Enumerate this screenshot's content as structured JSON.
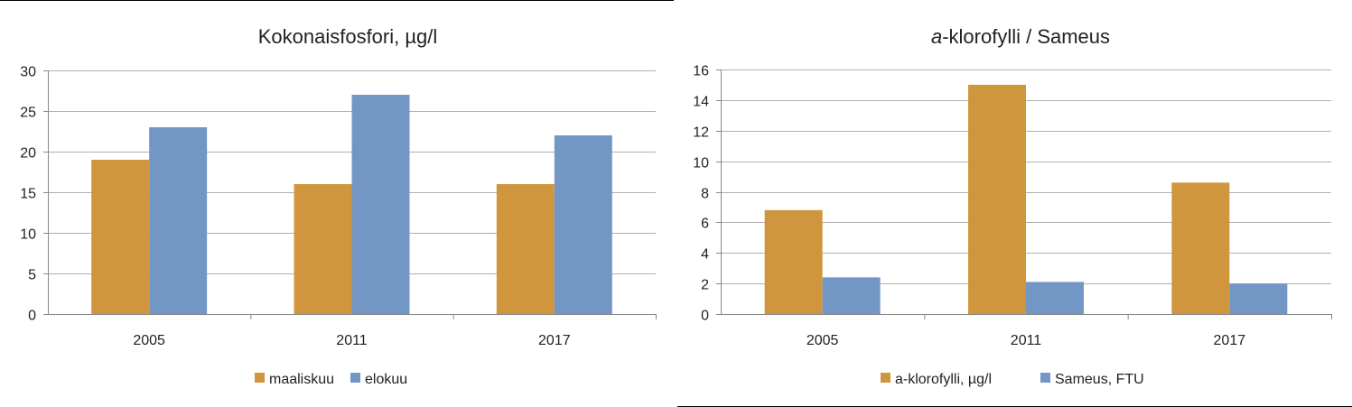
{
  "colors": {
    "orange": "#D0963E",
    "blue": "#7397C4",
    "grid": "#b0b0b0",
    "axis": "#888888"
  },
  "chart_data": [
    {
      "type": "bar",
      "title": "Kokonaisfosfori, µg/l",
      "categories": [
        "2005",
        "2011",
        "2017"
      ],
      "ylim": [
        0,
        30
      ],
      "yticks": [
        0,
        5,
        10,
        15,
        20,
        25,
        30
      ],
      "legend": "bottom",
      "grid": true,
      "series": [
        {
          "name": "maaliskuu",
          "values": [
            19,
            16,
            16
          ]
        },
        {
          "name": "elokuu",
          "values": [
            23,
            27,
            22
          ]
        }
      ]
    },
    {
      "type": "bar",
      "title_prefix": "a",
      "title": "-klorofylli / Sameus",
      "categories": [
        "2005",
        "2011",
        "2017"
      ],
      "ylim": [
        0,
        16
      ],
      "yticks": [
        0,
        2,
        4,
        6,
        8,
        10,
        12,
        14,
        16
      ],
      "legend": "bottom",
      "grid": true,
      "series": [
        {
          "name": "a-klorofylli, µg/l",
          "values": [
            6.8,
            15.0,
            8.6
          ]
        },
        {
          "name": "Sameus, FTU",
          "values": [
            2.4,
            2.1,
            2.0
          ]
        }
      ]
    }
  ]
}
